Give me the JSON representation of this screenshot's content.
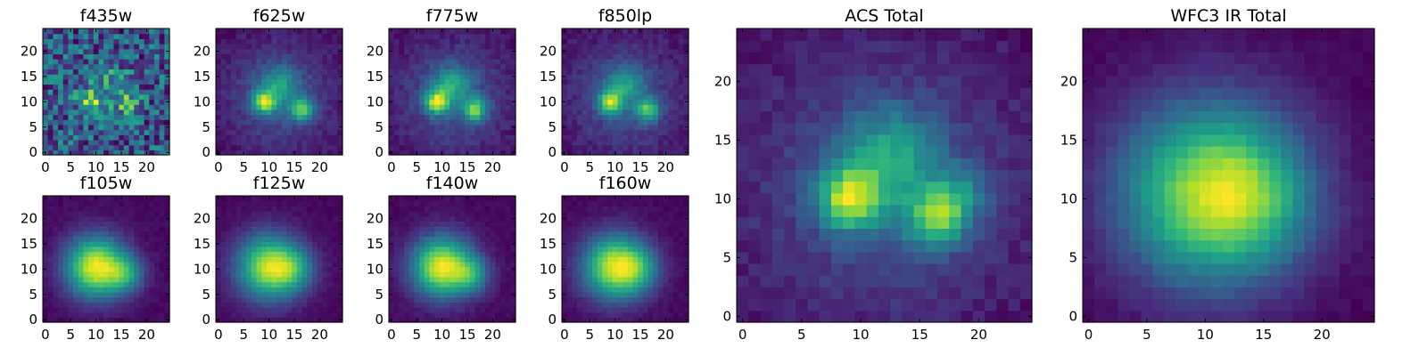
{
  "chart_data": [
    {
      "type": "heatmap",
      "title": "f435w",
      "model": "noisy",
      "sources": [
        {
          "x": 9,
          "y": 10,
          "amp": 0.55,
          "s": 1.8
        },
        {
          "x": 16,
          "y": 10,
          "amp": 0.45,
          "s": 1.8
        },
        {
          "x": 12.5,
          "y": 14,
          "amp": 0.25,
          "s": 2.5
        }
      ],
      "xticks": [
        0,
        5,
        10,
        15,
        20
      ],
      "yticks": [
        0,
        5,
        10,
        15,
        20
      ],
      "xlim": [
        0,
        24
      ],
      "ylim": [
        0,
        24
      ]
    },
    {
      "type": "heatmap",
      "title": "f625w",
      "model": "clumpy",
      "sources": [
        {
          "x": 9,
          "y": 10,
          "amp": 0.9,
          "s": 1.6
        },
        {
          "x": 16.5,
          "y": 8.5,
          "amp": 0.75,
          "s": 1.6
        },
        {
          "x": 12,
          "y": 13.5,
          "amp": 0.45,
          "s": 2.5
        }
      ],
      "xticks": [
        0,
        5,
        10,
        15,
        20
      ],
      "yticks": [
        0,
        5,
        10,
        15,
        20
      ],
      "xlim": [
        0,
        24
      ],
      "ylim": [
        0,
        24
      ]
    },
    {
      "type": "heatmap",
      "title": "f775w",
      "model": "clumpy",
      "sources": [
        {
          "x": 9,
          "y": 10,
          "amp": 0.9,
          "s": 1.6
        },
        {
          "x": 16.5,
          "y": 8.5,
          "amp": 0.75,
          "s": 1.6
        },
        {
          "x": 12,
          "y": 13.5,
          "amp": 0.45,
          "s": 2.5
        }
      ],
      "xticks": [
        0,
        5,
        10,
        15,
        20
      ],
      "yticks": [
        0,
        5,
        10,
        15,
        20
      ],
      "xlim": [
        0,
        24
      ],
      "ylim": [
        0,
        24
      ]
    },
    {
      "type": "heatmap",
      "title": "f850lp",
      "model": "clumpy",
      "sources": [
        {
          "x": 9,
          "y": 10,
          "amp": 0.9,
          "s": 1.6
        },
        {
          "x": 16.5,
          "y": 8.5,
          "amp": 0.75,
          "s": 1.6
        },
        {
          "x": 12,
          "y": 13.5,
          "amp": 0.45,
          "s": 2.5
        }
      ],
      "xticks": [
        0,
        5,
        10,
        15,
        20
      ],
      "yticks": [
        0,
        5,
        10,
        15,
        20
      ],
      "xlim": [
        0,
        24
      ],
      "ylim": [
        0,
        24
      ]
    },
    {
      "type": "heatmap",
      "title": "f105w",
      "model": "smooth",
      "sources": [
        {
          "x": 10,
          "y": 10.5,
          "amp": 1.0,
          "s": 4.2
        },
        {
          "x": 16,
          "y": 9,
          "amp": 0.4,
          "s": 2.5
        }
      ],
      "xticks": [
        0,
        5,
        10,
        15,
        20
      ],
      "yticks": [
        0,
        5,
        10,
        15,
        20
      ],
      "xlim": [
        0,
        24
      ],
      "ylim": [
        0,
        24
      ]
    },
    {
      "type": "heatmap",
      "title": "f125w",
      "model": "smooth",
      "sources": [
        {
          "x": 10,
          "y": 10.5,
          "amp": 1.0,
          "s": 4.5
        },
        {
          "x": 15,
          "y": 10,
          "amp": 0.35,
          "s": 3.0
        }
      ],
      "xticks": [
        0,
        5,
        10,
        15,
        20
      ],
      "yticks": [
        0,
        5,
        10,
        15,
        20
      ],
      "xlim": [
        0,
        24
      ],
      "ylim": [
        0,
        24
      ]
    },
    {
      "type": "heatmap",
      "title": "f140w",
      "model": "smooth",
      "sources": [
        {
          "x": 10,
          "y": 10.5,
          "amp": 1.0,
          "s": 4.2
        },
        {
          "x": 16,
          "y": 9,
          "amp": 0.4,
          "s": 2.5
        }
      ],
      "xticks": [
        0,
        5,
        10,
        15,
        20
      ],
      "yticks": [
        0,
        5,
        10,
        15,
        20
      ],
      "xlim": [
        0,
        24
      ],
      "ylim": [
        0,
        24
      ]
    },
    {
      "type": "heatmap",
      "title": "f160w",
      "model": "smooth",
      "sources": [
        {
          "x": 10,
          "y": 10.5,
          "amp": 1.0,
          "s": 4.5
        },
        {
          "x": 15,
          "y": 10,
          "amp": 0.3,
          "s": 3.0
        }
      ],
      "xticks": [
        0,
        5,
        10,
        15,
        20
      ],
      "yticks": [
        0,
        5,
        10,
        15,
        20
      ],
      "xlim": [
        0,
        24
      ],
      "ylim": [
        0,
        24
      ]
    },
    {
      "type": "heatmap",
      "title": "ACS Total",
      "model": "clumpy",
      "sources": [
        {
          "x": 9,
          "y": 10,
          "amp": 0.9,
          "s": 1.8
        },
        {
          "x": 16.5,
          "y": 8.5,
          "amp": 0.75,
          "s": 1.8
        },
        {
          "x": 12.5,
          "y": 13.5,
          "amp": 0.5,
          "s": 2.8
        },
        {
          "x": 18.5,
          "y": 10.5,
          "amp": 0.3,
          "s": 1.6
        }
      ],
      "xticks": [
        0,
        5,
        10,
        15,
        20
      ],
      "yticks": [
        0,
        5,
        10,
        15,
        20
      ],
      "xlim": [
        0,
        24
      ],
      "ylim": [
        0,
        24
      ]
    },
    {
      "type": "heatmap",
      "title": "WFC3 IR Total",
      "model": "smooth",
      "sources": [
        {
          "x": 10.5,
          "y": 10.5,
          "amp": 1.0,
          "s": 5.5
        },
        {
          "x": 14.5,
          "y": 10,
          "amp": 0.25,
          "s": 3.5
        }
      ],
      "xticks": [
        0,
        5,
        10,
        15,
        20
      ],
      "yticks": [
        0,
        5,
        10,
        15,
        20
      ],
      "xlim": [
        0,
        24
      ],
      "ylim": [
        0,
        24
      ]
    }
  ],
  "colormap": [
    "#440154",
    "#482878",
    "#3e4989",
    "#31688e",
    "#26828e",
    "#1f9e89",
    "#35b779",
    "#6ece58",
    "#b5de2b",
    "#fde725"
  ]
}
